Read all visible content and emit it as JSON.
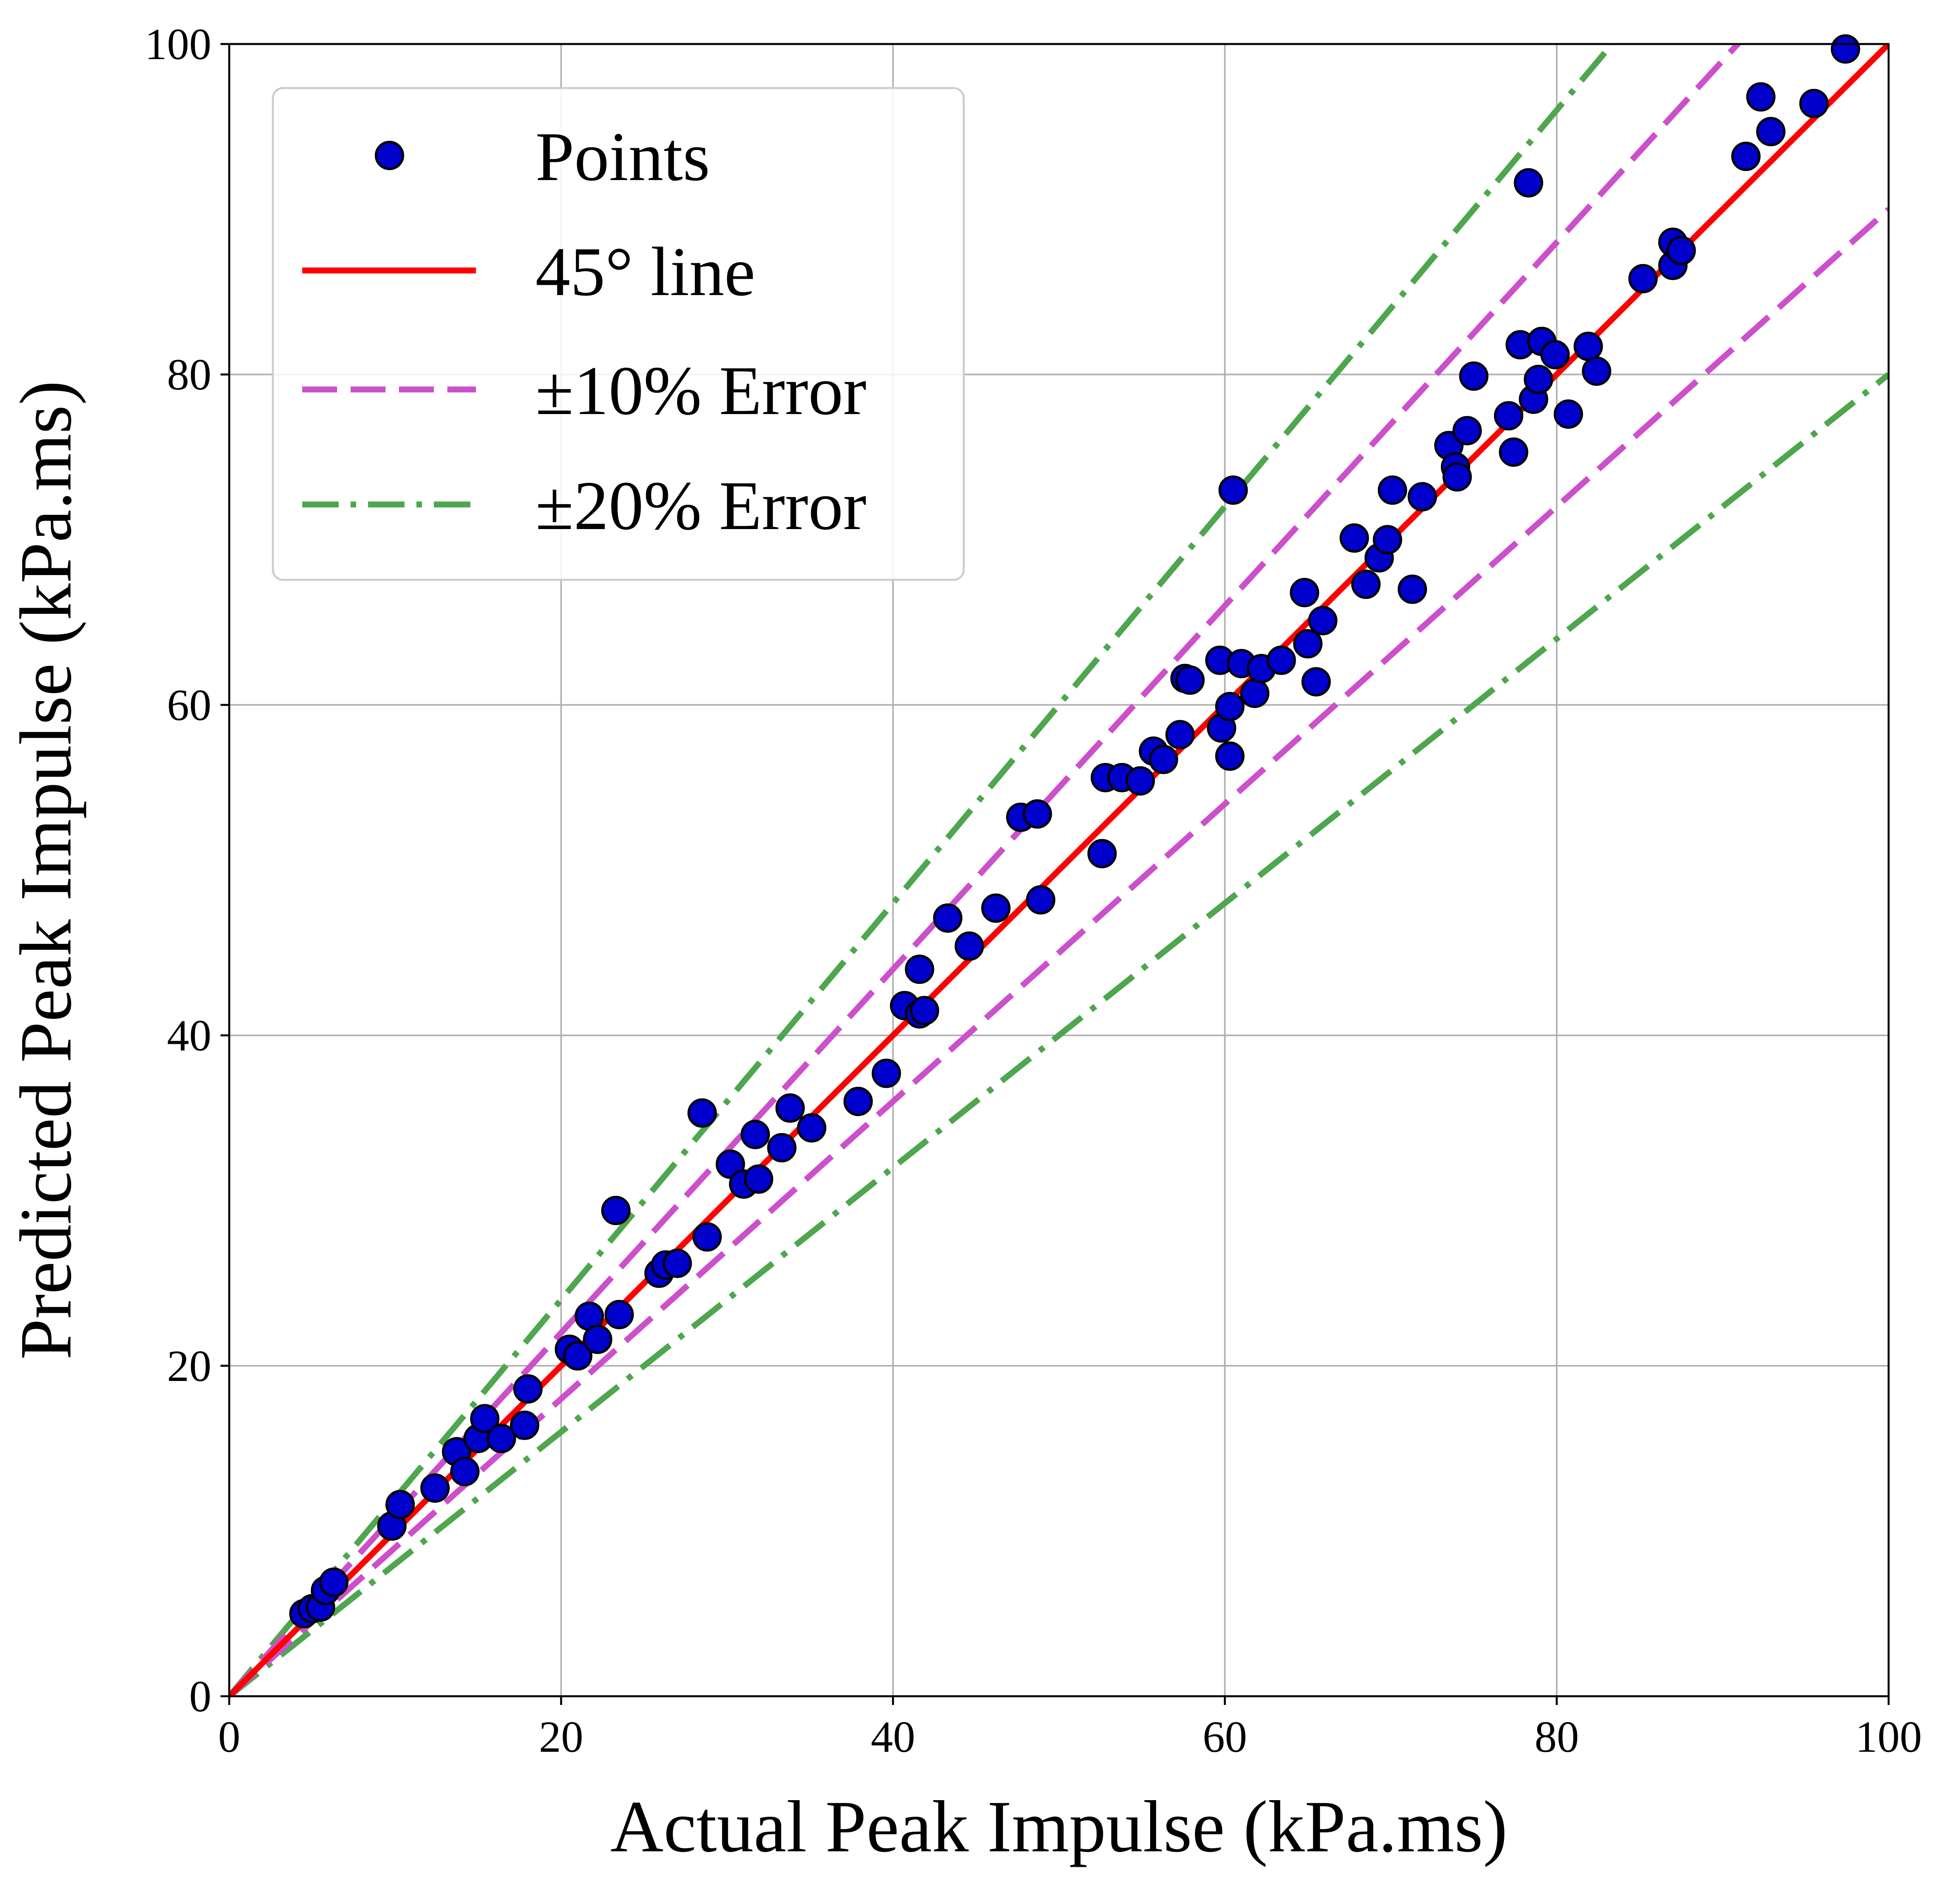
{
  "chart_data": {
    "type": "scatter",
    "title": "",
    "xlabel": "Actual Peak Impulse (kPa.ms)",
    "ylabel": "Predicted Peak Impulse (kPa.ms)",
    "xlim": [
      0,
      100
    ],
    "ylim": [
      0,
      100
    ],
    "xticks": [
      "0",
      "20",
      "40",
      "60",
      "80",
      "100"
    ],
    "yticks": [
      "0",
      "20",
      "40",
      "60",
      "80",
      "100"
    ],
    "grid": true,
    "legend_position": "top-left",
    "series": [
      {
        "name": "Points",
        "kind": "scatter",
        "color": "#0000cd",
        "edge_color": "#000000",
        "points": [
          [
            4.5,
            5.0
          ],
          [
            5.0,
            5.3
          ],
          [
            5.5,
            5.4
          ],
          [
            5.8,
            6.4
          ],
          [
            6.3,
            6.9
          ],
          [
            9.8,
            10.3
          ],
          [
            10.3,
            11.6
          ],
          [
            12.4,
            12.6
          ],
          [
            13.7,
            14.8
          ],
          [
            14.2,
            13.6
          ],
          [
            15.0,
            15.6
          ],
          [
            15.4,
            16.8
          ],
          [
            16.4,
            15.6
          ],
          [
            17.8,
            16.4
          ],
          [
            18.0,
            18.6
          ],
          [
            20.5,
            21.0
          ],
          [
            21.0,
            20.6
          ],
          [
            21.7,
            23.0
          ],
          [
            22.2,
            21.6
          ],
          [
            23.5,
            23.1
          ],
          [
            23.3,
            29.4
          ],
          [
            25.9,
            25.6
          ],
          [
            26.3,
            26.1
          ],
          [
            27.0,
            26.2
          ],
          [
            28.5,
            35.3
          ],
          [
            28.8,
            27.8
          ],
          [
            30.2,
            32.2
          ],
          [
            31.0,
            31.0
          ],
          [
            31.7,
            34.0
          ],
          [
            31.9,
            31.3
          ],
          [
            33.3,
            33.2
          ],
          [
            33.8,
            35.6
          ],
          [
            35.1,
            34.4
          ],
          [
            37.9,
            36.0
          ],
          [
            39.6,
            37.7
          ],
          [
            40.7,
            41.8
          ],
          [
            41.6,
            41.3
          ],
          [
            41.6,
            44.0
          ],
          [
            41.9,
            41.5
          ],
          [
            43.3,
            47.1
          ],
          [
            44.6,
            45.4
          ],
          [
            46.2,
            47.7
          ],
          [
            47.7,
            53.2
          ],
          [
            48.7,
            53.4
          ],
          [
            48.9,
            48.2
          ],
          [
            52.6,
            51.0
          ],
          [
            52.8,
            55.6
          ],
          [
            53.8,
            55.6
          ],
          [
            54.9,
            55.4
          ],
          [
            55.7,
            57.2
          ],
          [
            56.3,
            56.7
          ],
          [
            57.3,
            58.2
          ],
          [
            57.6,
            61.6
          ],
          [
            57.9,
            61.5
          ],
          [
            59.7,
            62.7
          ],
          [
            59.8,
            58.6
          ],
          [
            60.3,
            56.9
          ],
          [
            60.3,
            59.9
          ],
          [
            60.5,
            73.0
          ],
          [
            61.0,
            62.5
          ],
          [
            61.8,
            60.7
          ],
          [
            62.2,
            62.2
          ],
          [
            63.4,
            62.7
          ],
          [
            64.8,
            66.8
          ],
          [
            65.0,
            63.7
          ],
          [
            65.5,
            61.4
          ],
          [
            65.9,
            65.1
          ],
          [
            67.8,
            70.1
          ],
          [
            68.5,
            67.3
          ],
          [
            69.3,
            68.9
          ],
          [
            69.8,
            70.0
          ],
          [
            70.1,
            73.0
          ],
          [
            71.3,
            67.0
          ],
          [
            71.9,
            72.6
          ],
          [
            73.5,
            75.7
          ],
          [
            73.9,
            74.4
          ],
          [
            74.0,
            73.8
          ],
          [
            74.6,
            76.6
          ],
          [
            75.0,
            79.9
          ],
          [
            77.1,
            77.5
          ],
          [
            77.4,
            75.3
          ],
          [
            77.8,
            81.8
          ],
          [
            78.3,
            91.6
          ],
          [
            78.6,
            78.5
          ],
          [
            78.9,
            79.7
          ],
          [
            79.1,
            82.0
          ],
          [
            79.9,
            81.2
          ],
          [
            80.7,
            77.6
          ],
          [
            81.9,
            81.7
          ],
          [
            82.4,
            80.2
          ],
          [
            85.2,
            85.8
          ],
          [
            87.0,
            86.6
          ],
          [
            87.0,
            88.0
          ],
          [
            87.5,
            87.5
          ],
          [
            91.4,
            93.2
          ],
          [
            92.3,
            96.8
          ],
          [
            92.9,
            94.7
          ],
          [
            95.5,
            96.4
          ],
          [
            97.4,
            99.7
          ]
        ]
      },
      {
        "name": "45° line",
        "kind": "line",
        "slope": 1.0,
        "color": "#ff0000",
        "dash": "solid"
      },
      {
        "name": "±10% Error",
        "kind": "line",
        "slopes": [
          1.1,
          0.9
        ],
        "color": "#cc4fcc",
        "dash": "dashed"
      },
      {
        "name": "±20% Error",
        "kind": "line",
        "slopes": [
          1.2,
          0.8
        ],
        "color": "#4ea64e",
        "dash": "dashdot"
      }
    ]
  }
}
